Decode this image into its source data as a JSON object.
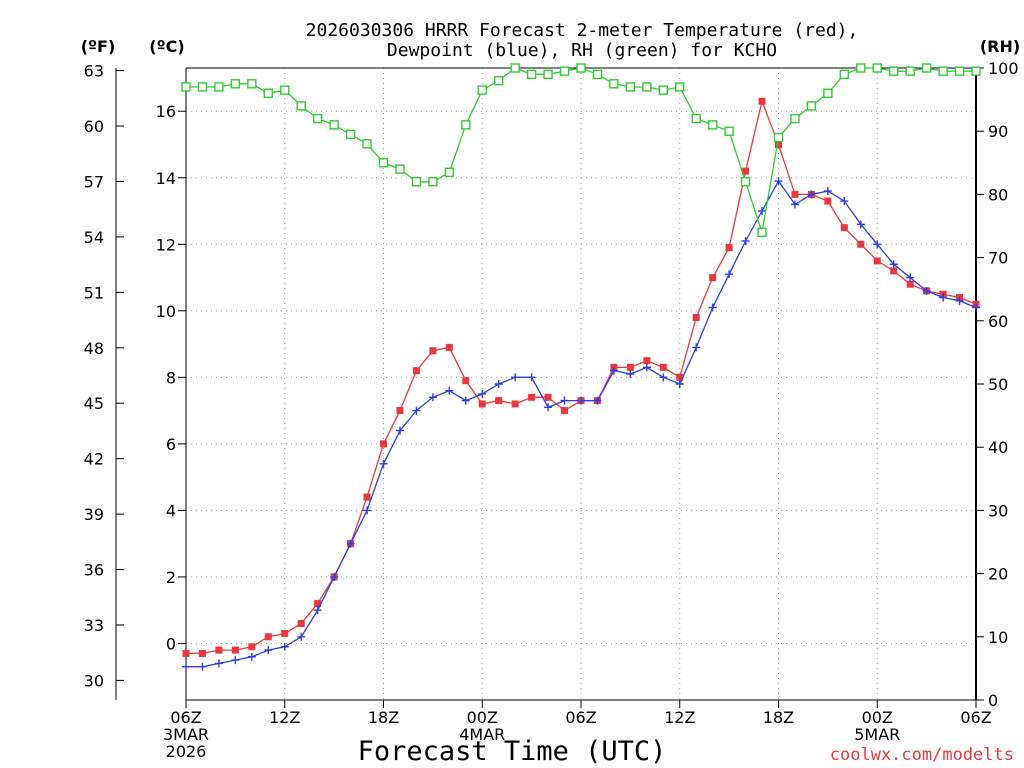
{
  "chart_data": {
    "type": "line",
    "title_line1": "2026030306 HRRR Forecast 2-meter Temperature (red),",
    "title_line2": "Dewpoint (blue), RH (green) for KCHO",
    "xlabel": "Forecast Time (UTC)",
    "watermark": "coolwx.com/modelts",
    "unit_f": "(ºF)",
    "unit_c": "(ºC)",
    "unit_rh": "(RH)",
    "x_range": [
      0,
      48
    ],
    "x_ticks": [
      {
        "h": 0,
        "label": "06Z"
      },
      {
        "h": 6,
        "label": "12Z"
      },
      {
        "h": 12,
        "label": "18Z"
      },
      {
        "h": 18,
        "label": "00Z"
      },
      {
        "h": 24,
        "label": "06Z"
      },
      {
        "h": 30,
        "label": "12Z"
      },
      {
        "h": 36,
        "label": "18Z"
      },
      {
        "h": 42,
        "label": "00Z"
      },
      {
        "h": 48,
        "label": "06Z"
      }
    ],
    "date_labels": [
      {
        "h": 0,
        "lines": [
          "3MAR",
          "2026"
        ]
      },
      {
        "h": 18,
        "lines": [
          "4MAR"
        ]
      },
      {
        "h": 42,
        "lines": [
          "5MAR"
        ]
      }
    ],
    "c_range": [
      -1.7,
      17.3
    ],
    "c_ticks": [
      0,
      2,
      4,
      6,
      8,
      10,
      12,
      14,
      16
    ],
    "f_ticks": [
      30,
      33,
      36,
      39,
      42,
      45,
      48,
      51,
      54,
      57,
      60,
      63
    ],
    "rh_range": [
      0,
      100
    ],
    "rh_ticks": [
      0,
      10,
      20,
      30,
      40,
      50,
      60,
      70,
      80,
      90,
      100
    ],
    "series": [
      {
        "name": "Temperature (°C)",
        "color": "#e8383d",
        "axis": "c",
        "marker": "square",
        "values": [
          -0.3,
          -0.3,
          -0.2,
          -0.2,
          -0.1,
          0.2,
          0.3,
          0.6,
          1.2,
          2.0,
          3.0,
          4.4,
          6.0,
          7.0,
          8.2,
          8.8,
          8.9,
          7.9,
          7.2,
          7.3,
          7.2,
          7.4,
          7.4,
          7.0,
          7.3,
          7.3,
          8.3,
          8.3,
          8.5,
          8.3,
          8.0,
          9.8,
          11.0,
          11.9,
          14.2,
          16.3,
          15.0,
          13.5,
          13.5,
          13.3,
          12.5,
          12.0,
          11.5,
          11.2,
          10.8,
          10.6,
          10.5,
          10.4,
          10.2
        ]
      },
      {
        "name": "Dewpoint (°C)",
        "color": "#2a3de8",
        "axis": "c",
        "marker": "plus",
        "values": [
          -0.7,
          -0.7,
          -0.6,
          -0.5,
          -0.4,
          -0.2,
          -0.1,
          0.2,
          1.0,
          2.0,
          3.0,
          4.0,
          5.4,
          6.4,
          7.0,
          7.4,
          7.6,
          7.3,
          7.5,
          7.8,
          8.0,
          8.0,
          7.1,
          7.3,
          7.3,
          7.3,
          8.2,
          8.1,
          8.3,
          8.0,
          7.8,
          8.9,
          10.1,
          11.1,
          12.1,
          13.0,
          13.9,
          13.2,
          13.5,
          13.6,
          13.3,
          12.6,
          12.0,
          11.4,
          11.0,
          10.6,
          10.4,
          10.3,
          10.1
        ]
      },
      {
        "name": "RH (%)",
        "color": "#2ecc2e",
        "axis": "rh",
        "marker": "open-square",
        "values": [
          97,
          97,
          97,
          97.5,
          97.5,
          96,
          96.5,
          94,
          92,
          91,
          89.5,
          88,
          85,
          84,
          82,
          82,
          83.5,
          91,
          96.5,
          98,
          100,
          99,
          99,
          99.5,
          100,
          99,
          97.5,
          97,
          97,
          96.5,
          97,
          92,
          91,
          90,
          82,
          74,
          89,
          92,
          94,
          96,
          99,
          100,
          100,
          99.5,
          99.5,
          100,
          99.5,
          99.5,
          99.5
        ]
      }
    ]
  }
}
